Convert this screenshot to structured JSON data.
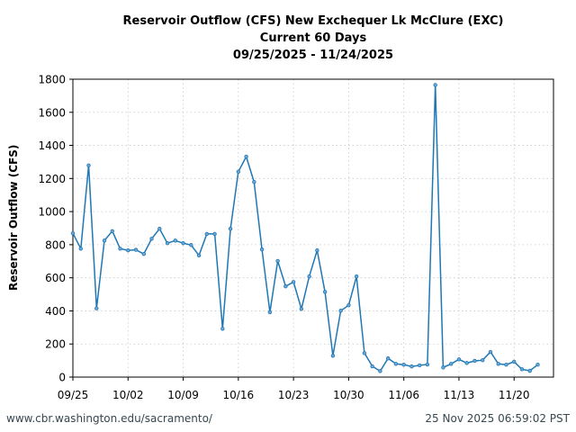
{
  "title": {
    "line1": "Reservoir Outflow (CFS) New Exchequer Lk McClure (EXC)",
    "line2": "Current 60 Days",
    "line3": "09/25/2025 - 11/24/2025"
  },
  "footer": {
    "url": "www.cbr.washington.edu/sacramento/",
    "timestamp": "25 Nov 2025 06:59:02 PST"
  },
  "colors": {
    "series": "#1f77b4",
    "grid": "#c8c8c8",
    "axis": "#000000"
  },
  "chart_data": {
    "type": "line",
    "title": "Reservoir Outflow (CFS) New Exchequer Lk McClure (EXC) — Current 60 Days — 09/25/2025 - 11/24/2025",
    "xlabel": "",
    "ylabel": "Reservoir Outflow (CFS)",
    "ylim": [
      0,
      1800
    ],
    "yticks": [
      0,
      200,
      400,
      600,
      800,
      1000,
      1200,
      1400,
      1600,
      1800
    ],
    "xticks": [
      "09/25",
      "10/02",
      "10/09",
      "10/16",
      "10/23",
      "10/30",
      "11/06",
      "11/13",
      "11/20"
    ],
    "xtick_day_offsets": [
      0,
      7,
      14,
      21,
      28,
      35,
      42,
      49,
      56
    ],
    "x_range_days": [
      0,
      61
    ],
    "grid": true,
    "legend": null,
    "series": [
      {
        "name": "Reservoir Outflow (CFS)",
        "x": [
          "09/25",
          "09/26",
          "09/27",
          "09/28",
          "09/29",
          "09/30",
          "10/01",
          "10/02",
          "10/03",
          "10/04",
          "10/05",
          "10/06",
          "10/07",
          "10/08",
          "10/09",
          "10/10",
          "10/11",
          "10/12",
          "10/13",
          "10/14",
          "10/15",
          "10/16",
          "10/17",
          "10/18",
          "10/19",
          "10/20",
          "10/21",
          "10/22",
          "10/23",
          "10/24",
          "10/25",
          "10/26",
          "10/27",
          "10/28",
          "10/29",
          "10/30",
          "10/31",
          "11/01",
          "11/02",
          "11/03",
          "11/04",
          "11/05",
          "11/06",
          "11/07",
          "11/08",
          "11/09",
          "11/10",
          "11/11",
          "11/12",
          "11/13",
          "11/14",
          "11/15",
          "11/16",
          "11/17",
          "11/18",
          "11/19",
          "11/20",
          "11/21",
          "11/22",
          "11/23"
        ],
        "values": [
          869,
          776,
          1279,
          415,
          825,
          882,
          776,
          766,
          769,
          744,
          836,
          896,
          809,
          825,
          809,
          798,
          735,
          865,
          865,
          292,
          896,
          1241,
          1332,
          1179,
          771,
          392,
          702,
          548,
          575,
          412,
          608,
          766,
          515,
          129,
          401,
          434,
          608,
          145,
          65,
          36,
          113,
          80,
          75,
          64,
          71,
          76,
          1765,
          58,
          80,
          107,
          85,
          98,
          102,
          152,
          80,
          75,
          93,
          47,
          38,
          75
        ]
      }
    ]
  }
}
